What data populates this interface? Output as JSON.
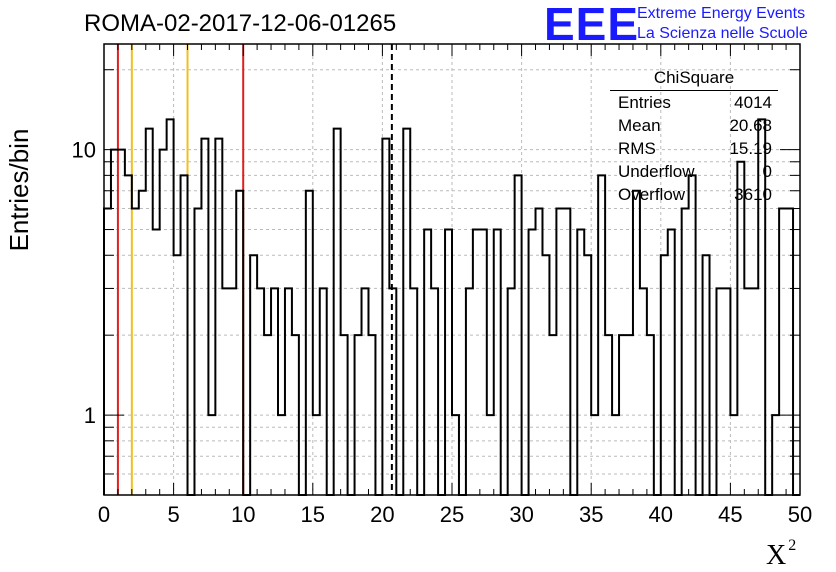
{
  "title": "ROMA-02-2017-12-06-01265",
  "logo": {
    "mark": "EEE",
    "line1": "Extreme Energy Events",
    "line2": "La Scienza nelle Scuole"
  },
  "colors": {
    "histogram": "#000000",
    "red_line": "#e02020",
    "yellow_line": "#f0c020",
    "dashed_line": "#000000",
    "logo": "#1a1aff",
    "grid": "#bbbbbb"
  },
  "stats_box": {
    "title": "ChiSquare",
    "rows": [
      {
        "label": "Entries",
        "value": "4014"
      },
      {
        "label": "Mean",
        "value": "20.68"
      },
      {
        "label": "RMS",
        "value": "15.19"
      },
      {
        "label": "Underflow",
        "value": "0"
      },
      {
        "label": "Overflow",
        "value": "3610"
      }
    ]
  },
  "chart_data": {
    "type": "bar",
    "style": "step-histogram",
    "title": "ROMA-02-2017-12-06-01265",
    "xlabel": "X",
    "xlabel_superscript": "2",
    "ylabel": "Entries/bin",
    "xlim": [
      0,
      50
    ],
    "ylim": [
      0.5,
      25
    ],
    "yscale": "log",
    "grid": true,
    "bin_width": 0.5,
    "x_ticks": [
      "0",
      "5",
      "10",
      "15",
      "20",
      "25",
      "30",
      "35",
      "40",
      "45",
      "50"
    ],
    "y_ticks": [
      "1",
      "10"
    ],
    "bin_starts": [
      0,
      0.5,
      1,
      1.5,
      2,
      2.5,
      3,
      3.5,
      4,
      4.5,
      5,
      5.5,
      6,
      6.5,
      7,
      7.5,
      8,
      8.5,
      9,
      9.5,
      10,
      10.5,
      11,
      11.5,
      12,
      12.5,
      13,
      13.5,
      14,
      14.5,
      15,
      15.5,
      16,
      16.5,
      17,
      17.5,
      18,
      18.5,
      19,
      19.5,
      20,
      20.5,
      21,
      21.5,
      22,
      22.5,
      23,
      23.5,
      24,
      24.5,
      25,
      25.5,
      26,
      26.5,
      27,
      27.5,
      28,
      28.5,
      29,
      29.5,
      30,
      30.5,
      31,
      31.5,
      32,
      32.5,
      33,
      33.5,
      34,
      34.5,
      35,
      35.5,
      36,
      36.5,
      37,
      37.5,
      38,
      38.5,
      39,
      39.5,
      40,
      40.5,
      41,
      41.5,
      42,
      42.5,
      43,
      43.5,
      44,
      44.5,
      45,
      45.5,
      46,
      46.5,
      47,
      47.5,
      48,
      48.5,
      49,
      49.5
    ],
    "counts": [
      6,
      10,
      10,
      8,
      6,
      7,
      12,
      5,
      10,
      13,
      4,
      8,
      0,
      6,
      11,
      1,
      11,
      3,
      3,
      7,
      0,
      4,
      3,
      2,
      3,
      1,
      3,
      2,
      0,
      7,
      1,
      3,
      0,
      12,
      2,
      0,
      2,
      3,
      2,
      0,
      11,
      3,
      0,
      12,
      3,
      0,
      5,
      3,
      0,
      5,
      1,
      0,
      3,
      5,
      5,
      1,
      5,
      0,
      3,
      8,
      0,
      5,
      6,
      4,
      2,
      6,
      6,
      0,
      5,
      4,
      1,
      8,
      2,
      1,
      2,
      2,
      7,
      3,
      2,
      0,
      4,
      5,
      0,
      6,
      8,
      0,
      4,
      0,
      3,
      3,
      1,
      9,
      3,
      3,
      13,
      0,
      1,
      6,
      6,
      0
    ],
    "vertical_lines": [
      {
        "x": 1,
        "color": "red",
        "style": "solid"
      },
      {
        "x": 2,
        "color": "yellow",
        "style": "solid"
      },
      {
        "x": 6,
        "color": "yellow",
        "style": "solid"
      },
      {
        "x": 10,
        "color": "red",
        "style": "solid"
      },
      {
        "x": 20.68,
        "color": "black",
        "style": "dashed"
      }
    ]
  }
}
